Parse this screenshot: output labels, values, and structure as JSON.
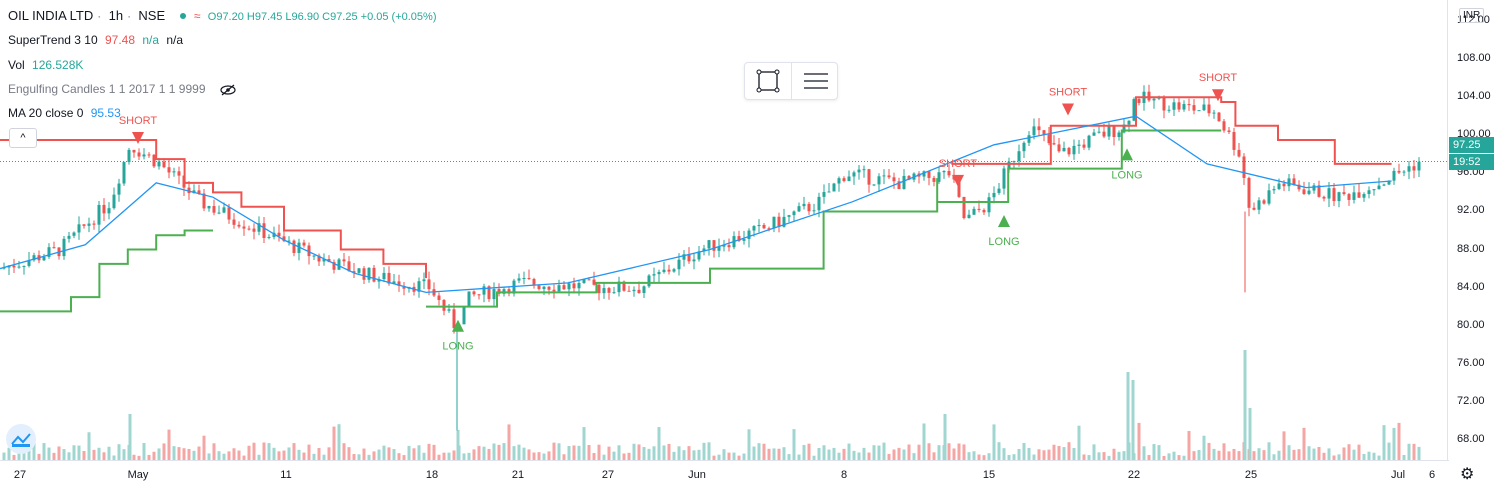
{
  "header": {
    "symbol": "OIL INDIA LTD",
    "interval": "1h",
    "exchange": "NSE",
    "wave_glyph": "≈",
    "ohlc": "O97.20  H97.45  L96.90  C97.25  +0.05 (+0.05%)"
  },
  "indicators": [
    {
      "name": "SuperTrend 3 10",
      "v1": "97.48",
      "v2": "n/a",
      "v3": "n/a"
    },
    {
      "name": "Vol",
      "v1": "126.528K"
    },
    {
      "name": "Engulfing Candles 1 1 2017 1 1 9999"
    },
    {
      "name": "MA 20 close 0",
      "v1": "95.53"
    }
  ],
  "collapse_label": "^",
  "currency": "INR",
  "y_ticks": [
    "112.00",
    "108.00",
    "104.00",
    "100.00",
    "96.00",
    "92.00",
    "88.00",
    "84.00",
    "80.00",
    "76.00",
    "72.00",
    "68.00"
  ],
  "x_ticks": [
    "27",
    "May",
    "11",
    "18",
    "21",
    "27",
    "Jun",
    "8",
    "15",
    "22",
    "25",
    "Jul",
    "6"
  ],
  "price_tag": "97.25",
  "time_tag": "19:52",
  "signals": [
    {
      "label": "SHORT",
      "type": "short"
    },
    {
      "label": "LONG",
      "type": "long"
    },
    {
      "label": "SHORT",
      "type": "short"
    },
    {
      "label": "LONG",
      "type": "long"
    },
    {
      "label": "SHORT",
      "type": "short"
    },
    {
      "label": "LONG",
      "type": "long"
    },
    {
      "label": "SHORT",
      "type": "short"
    }
  ],
  "colors": {
    "up": "#26a69a",
    "down": "#ef5350",
    "supertrend_up": "#4caf50",
    "supertrend_down": "#ef5350",
    "ma": "#2196f3"
  },
  "chart_data": {
    "type": "candlestick",
    "y_range": [
      66,
      114
    ],
    "supertrend_down": [
      [
        0,
        99.5
      ],
      [
        0.09,
        99.5
      ],
      [
        0.11,
        97.5
      ],
      [
        0.13,
        95
      ],
      [
        0.15,
        94
      ],
      [
        0.17,
        92.5
      ],
      [
        0.2,
        90
      ],
      [
        0.24,
        88
      ],
      [
        0.27,
        86.5
      ],
      [
        0.3,
        85
      ]
    ],
    "supertrend_up": [
      [
        0.3,
        82
      ],
      [
        0.35,
        83.5
      ],
      [
        0.42,
        84.5
      ],
      [
        0.5,
        86
      ],
      [
        0.58,
        92
      ],
      [
        0.66,
        95.5
      ]
    ],
    "ma": [
      [
        0,
        86
      ],
      [
        0.06,
        88.5
      ],
      [
        0.11,
        95
      ],
      [
        0.15,
        93.5
      ],
      [
        0.2,
        89
      ],
      [
        0.25,
        85.5
      ],
      [
        0.3,
        83.5
      ],
      [
        0.4,
        84.5
      ],
      [
        0.5,
        88
      ],
      [
        0.6,
        93
      ],
      [
        0.7,
        99
      ],
      [
        0.8,
        102
      ],
      [
        0.85,
        97
      ],
      [
        0.92,
        94.5
      ],
      [
        0.98,
        95.2
      ]
    ]
  }
}
